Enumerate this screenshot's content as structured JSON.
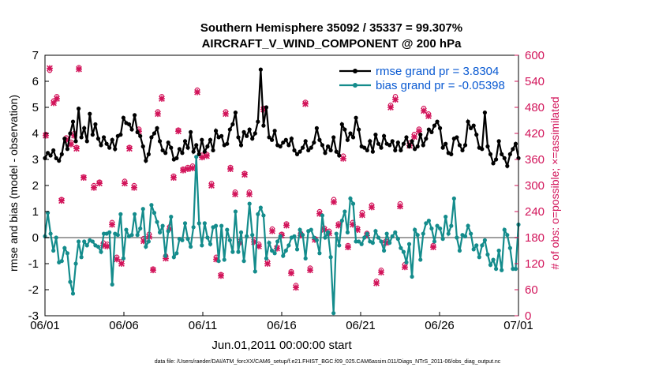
{
  "chart_data": {
    "type": "line",
    "title_line1": "Southern Hemisphere 35092 / 35337 = 99.307%",
    "title_line2": "AIRCRAFT_V_WIND_COMPONENT @ 200 hPa",
    "xlabel": "Jun.01,2011 00:00:00 start",
    "ylabel_left": "rmse and bias (model - observation)",
    "ylabel_right": "# of obs: o=possible; ×=assimilated",
    "footer": "data file: /Users/raeder/DAI/ATM_forcXX/CAM6_setup/f.e21.FHIST_BGC.f09_025.CAM6assim.011/Diags_NTrS_2011-06/obs_diag_output.nc",
    "x_ticks": [
      "06/01",
      "06/06",
      "06/11",
      "06/16",
      "06/21",
      "06/26",
      "07/01"
    ],
    "xlim": [
      0,
      30
    ],
    "ylim_left": [
      -3,
      7
    ],
    "y_ticks_left": [
      "-3",
      "-2",
      "-1",
      "0",
      "1",
      "2",
      "3",
      "4",
      "5",
      "6",
      "7"
    ],
    "ylim_right": [
      0,
      600
    ],
    "y_ticks_right": [
      "0",
      "60",
      "120",
      "180",
      "240",
      "300",
      "360",
      "420",
      "480",
      "540",
      "600"
    ],
    "colors": {
      "rmse": "#000000",
      "bias": "#148c8c",
      "obs": "#d2145a",
      "zero_line": "#a0a0a0",
      "legend_text": "#0a5ad2"
    },
    "series": [
      {
        "name": "rmse",
        "legend": "rmse grand pr = 3.8304",
        "values": [
          3.05,
          3.25,
          3.15,
          3.35,
          3.05,
          2.95,
          3.2,
          3.8,
          3.4,
          4.0,
          4.45,
          3.7,
          4.95,
          3.85,
          4.2,
          3.7,
          4.75,
          3.95,
          4.35,
          3.8,
          3.55,
          3.85,
          3.6,
          3.45,
          3.75,
          3.4,
          3.9,
          3.95,
          4.6,
          4.4,
          4.35,
          4.15,
          4.7,
          4.05,
          3.9,
          3.5,
          2.95,
          3.2,
          3.85,
          4.0,
          4.2,
          3.7,
          3.35,
          3.25,
          3.65,
          3.45,
          3.0,
          3.05,
          3.4,
          3.25,
          3.7,
          3.45,
          4.05,
          3.3,
          3.55,
          3.2,
          3.75,
          3.3,
          3.5,
          3.75,
          3.35,
          4.1,
          3.85,
          3.9,
          3.55,
          3.6,
          4.15,
          4.35,
          4.8,
          3.85,
          3.55,
          4.05,
          3.9,
          4.15,
          3.8,
          4.0,
          4.45,
          6.45,
          4.3,
          5.0,
          3.85,
          3.75,
          4.1,
          3.55,
          3.5,
          3.65,
          3.75,
          3.55,
          3.8,
          3.35,
          3.2,
          3.3,
          3.45,
          3.7,
          3.35,
          3.45,
          3.65,
          4.2,
          3.75,
          3.55,
          3.25,
          3.5,
          3.35,
          3.85,
          3.3,
          3.15,
          4.35,
          4.15,
          3.75,
          4.0,
          3.85,
          4.6,
          4.15,
          3.5,
          3.45,
          3.35,
          3.7,
          3.3,
          3.95,
          3.6,
          3.45,
          3.9,
          3.6,
          3.55,
          3.7,
          3.35,
          3.65,
          3.35,
          3.6,
          3.85,
          3.5,
          3.7,
          3.4,
          3.5,
          3.95,
          3.55,
          3.8,
          4.15,
          4.05,
          4.3,
          4.45,
          4.2,
          3.45,
          3.6,
          3.25,
          3.2,
          3.8,
          3.85,
          3.55,
          3.35,
          3.55,
          4.45,
          4.2,
          4.3,
          3.95,
          3.45,
          3.4,
          4.8,
          3.5,
          3.2,
          2.85,
          3.0,
          3.7,
          3.2,
          3.05,
          2.75,
          3.2,
          3.4,
          3.6,
          3.05
        ]
      },
      {
        "name": "bias",
        "legend": "bias grand pr = -0.05398",
        "values": [
          0.05,
          0.95,
          0.15,
          -0.5,
          0.0,
          -0.95,
          -0.9,
          -0.4,
          -0.6,
          -1.7,
          -2.15,
          -1.0,
          -0.15,
          -0.75,
          -0.15,
          -0.3,
          -0.1,
          -0.15,
          -0.3,
          -0.35,
          -0.55,
          0.15,
          0.15,
          0.2,
          -1.8,
          0.15,
          0.1,
          0.9,
          -0.8,
          0.3,
          0.05,
          0.1,
          0.9,
          0.1,
          0.35,
          1.1,
          -0.35,
          -0.15,
          1.25,
          0.95,
          0.6,
          0.2,
          0.45,
          -0.7,
          0.25,
          0.8,
          -0.75,
          -0.6,
          -0.05,
          -0.1,
          0.55,
          -0.05,
          -0.35,
          0.4,
          3.1,
          0.55,
          -0.3,
          0.55,
          0.0,
          -0.25,
          0.4,
          0.45,
          -0.9,
          0.45,
          -0.85,
          0.3,
          -0.1,
          -0.55,
          1.0,
          -0.55,
          0.2,
          -0.9,
          0.05,
          1.3,
          0.1,
          -1.3,
          0.9,
          1.15,
          0.85,
          -0.8,
          -0.2,
          -0.5,
          -0.6,
          -0.15,
          0.05,
          -0.7,
          -0.5,
          -0.3,
          0.0,
          0.05,
          -0.45,
          0.3,
          0.1,
          -0.8,
          0.25,
          0.3,
          0.0,
          -0.1,
          -0.6,
          0.85,
          0.0,
          0.2,
          -0.75,
          -2.9,
          0.15,
          -0.3,
          0.65,
          1.0,
          0.2,
          1.5,
          1.3,
          -0.15,
          -0.15,
          -0.25,
          0.0,
          0.15,
          -0.15,
          -0.2,
          0.25,
          0.0,
          -0.15,
          -0.5,
          0.15,
          -0.2,
          0.05,
          0.2,
          -0.05,
          -0.4,
          -0.55,
          -0.95,
          -0.25,
          -1.5,
          0.3,
          0.1,
          -0.85,
          0.15,
          0.55,
          0.65,
          0.35,
          -0.15,
          0.45,
          0.35,
          -0.05,
          0.8,
          0.15,
          0.45,
          1.5,
          0.0,
          -0.5,
          0.1,
          0.05,
          0.45,
          0.15,
          -0.45,
          -0.3,
          -0.75,
          -0.3,
          -0.1,
          -0.65,
          -1.05,
          -0.85,
          -1.2,
          -0.5,
          -1.25,
          0.3,
          0.1,
          -0.4,
          -1.2,
          -1.2,
          0.5
        ]
      },
      {
        "name": "obs_possible",
        "legend": "o = possible",
        "values": [
          418,
          565,
          495,
          505,
          268,
          410,
          400,
          420,
          388,
          572,
          320,
          300,
          308,
          168,
          165,
          215,
          135,
          125,
          310,
          388,
          300,
          430,
          178,
          188,
          108,
          470,
          505,
          138,
          205,
          322,
          428,
          338,
          342,
          345,
          520,
          370,
          372,
          305,
          135,
          95,
          470,
          342,
          285,
          172,
          328,
          285,
          175,
          165,
          478,
          125,
          200,
          158,
          188,
          212,
          102,
          70,
          190,
          492,
          110,
          178,
          240,
          202,
          195,
          268,
          212,
          368,
          162,
          215,
          202,
          238,
          190,
          255,
          80,
          105,
          172,
          485,
          505,
          258,
          118,
          398,
          418,
          430,
          478,
          465,
          162
        ]
      },
      {
        "name": "obs_assimilated",
        "legend": "× = assimilated",
        "values": [
          415,
          570,
          490,
          500,
          265,
          405,
          395,
          415,
          385,
          568,
          318,
          295,
          305,
          162,
          160,
          210,
          130,
          120,
          305,
          385,
          295,
          425,
          172,
          182,
          105,
          465,
          500,
          132,
          200,
          318,
          425,
          335,
          338,
          340,
          515,
          365,
          368,
          300,
          130,
          92,
          465,
          338,
          280,
          168,
          325,
          280,
          170,
          160,
          475,
          120,
          195,
          155,
          185,
          208,
          98,
          65,
          185,
          488,
          105,
          175,
          235,
          198,
          190,
          262,
          208,
          362,
          158,
          210,
          198,
          232,
          185,
          250,
          75,
          100,
          168,
          480,
          498,
          252,
          112,
          392,
          412,
          425,
          472,
          460,
          158
        ]
      }
    ],
    "obs_days": [
      0.05,
      0.3,
      0.55,
      0.75,
      1.05,
      1.35,
      1.65,
      1.85,
      2.0,
      2.15,
      2.45,
      3.1,
      3.45,
      3.7,
      3.95,
      4.25,
      4.55,
      4.85,
      5.05,
      5.35,
      5.65,
      5.95,
      6.25,
      6.6,
      6.85,
      7.15,
      7.4,
      7.65,
      7.9,
      8.15,
      8.45,
      8.75,
      9.05,
      9.35,
      9.65,
      9.95,
      10.25,
      10.55,
      10.85,
      11.15,
      11.45,
      11.75,
      12.05,
      12.35,
      12.65,
      12.95,
      13.25,
      13.55,
      13.85,
      14.1,
      14.4,
      14.7,
      15.0,
      15.3,
      15.6,
      15.9,
      16.2,
      16.5,
      16.8,
      17.1,
      17.4,
      17.7,
      18.0,
      18.3,
      18.6,
      18.9,
      19.2,
      19.5,
      19.8,
      20.1,
      20.4,
      20.7,
      21.0,
      21.3,
      21.6,
      21.9,
      22.2,
      22.5,
      22.8,
      23.1,
      23.4,
      23.7,
      24.0,
      24.3,
      24.6
    ],
    "notes": "rmse/bias sampled every ~0.18 day across 30 days; obs counts plotted on right axis"
  }
}
